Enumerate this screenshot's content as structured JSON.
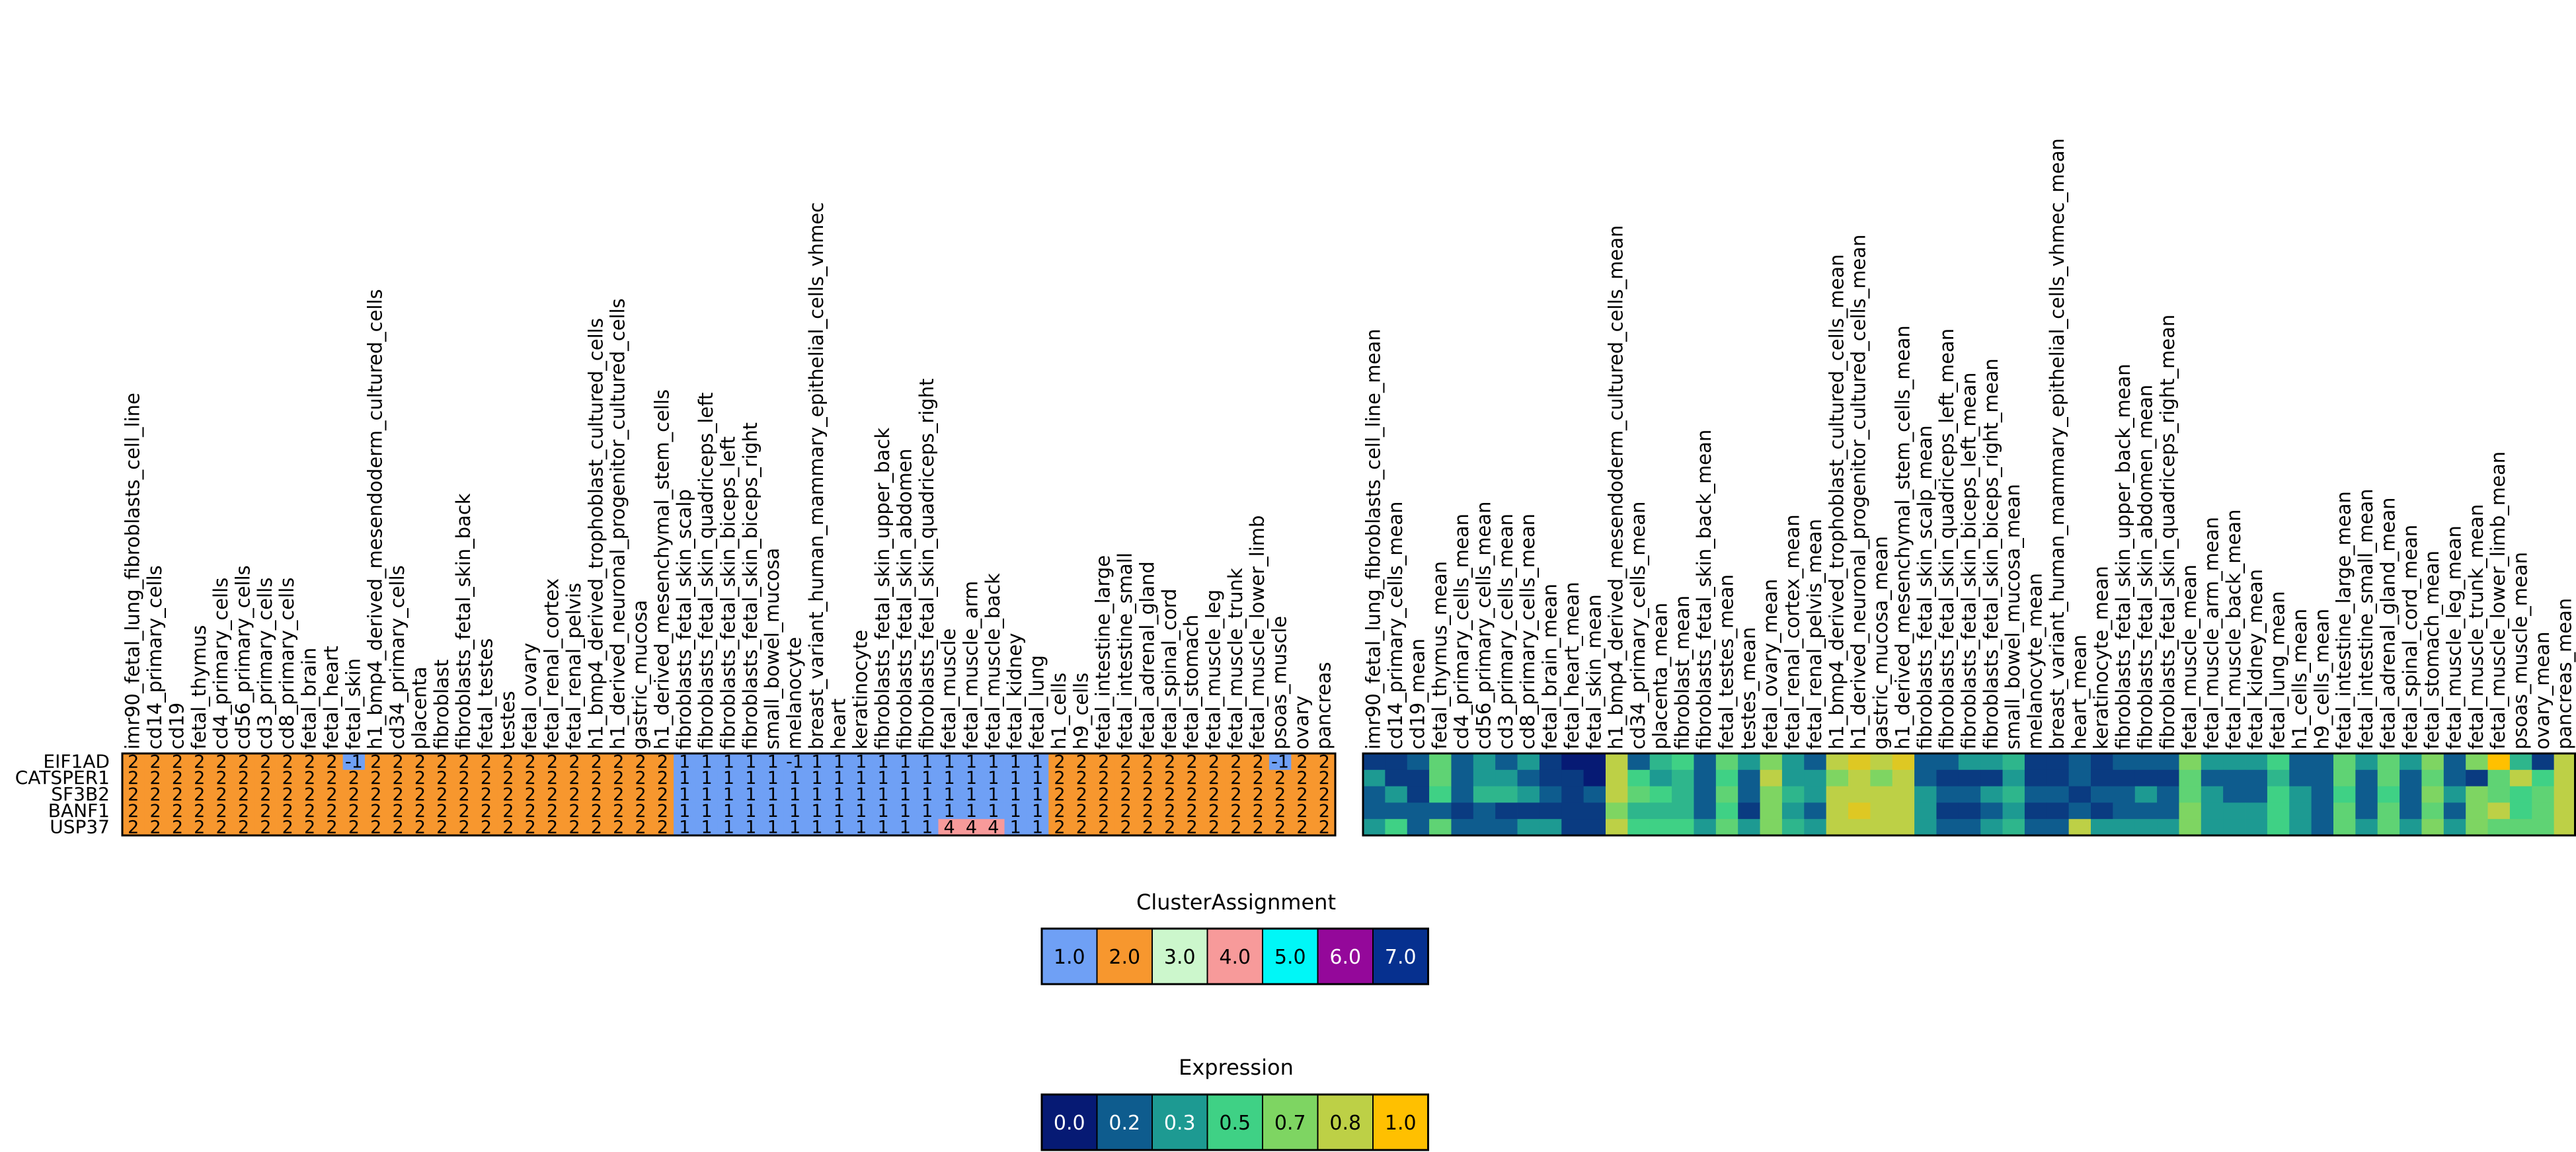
{
  "chart_data": [
    {
      "type": "heatmap",
      "name": "cluster-assignment-heatmap",
      "rows": [
        "EIF1AD",
        "CATSPER1",
        "SF3B2",
        "BANF1",
        "USP37"
      ],
      "columns": [
        "imr90_fetal_lung_fibroblasts_cell_line",
        "cd14_primary_cells",
        "cd19",
        "fetal_thymus",
        "cd4_primary_cells",
        "cd56_primary_cells",
        "cd3_primary_cells",
        "cd8_primary_cells",
        "fetal_brain",
        "fetal_heart",
        "fetal_skin",
        "h1_bmp4_derived_mesendoderm_cultured_cells",
        "cd34_primary_cells",
        "placenta",
        "fibroblast",
        "fibroblasts_fetal_skin_back",
        "fetal_testes",
        "testes",
        "fetal_ovary",
        "fetal_renal_cortex",
        "fetal_renal_pelvis",
        "h1_bmp4_derived_trophoblast_cultured_cells",
        "h1_derived_neuronal_progenitor_cultured_cells",
        "gastric_mucosa",
        "h1_derived_mesenchymal_stem_cells",
        "fibroblasts_fetal_skin_scalp",
        "fibroblasts_fetal_skin_quadriceps_left",
        "fibroblasts_fetal_skin_biceps_left",
        "fibroblasts_fetal_skin_biceps_right",
        "small_bowel_mucosa",
        "melanocyte",
        "breast_variant_human_mammary_epithelial_cells_vhmec",
        "heart",
        "keratinocyte",
        "fibroblasts_fetal_skin_upper_back",
        "fibroblasts_fetal_skin_abdomen",
        "fibroblasts_fetal_skin_quadriceps_right",
        "fetal_muscle",
        "fetal_muscle_arm",
        "fetal_muscle_back",
        "fetal_kidney",
        "fetal_lung",
        "h1_cells",
        "h9_cells",
        "fetal_intestine_large",
        "fetal_intestine_small",
        "fetal_adrenal_gland",
        "fetal_spinal_cord",
        "fetal_stomach",
        "fetal_muscle_leg",
        "fetal_muscle_trunk",
        "fetal_muscle_lower_limb",
        "psoas_muscle",
        "ovary",
        "pancreas"
      ],
      "values": [
        [
          2,
          2,
          2,
          2,
          2,
          2,
          2,
          2,
          2,
          2,
          -1,
          2,
          2,
          2,
          2,
          2,
          2,
          2,
          2,
          2,
          2,
          2,
          2,
          2,
          2,
          1,
          1,
          1,
          1,
          1,
          -1,
          1,
          1,
          1,
          1,
          1,
          1,
          1,
          1,
          1,
          1,
          1,
          2,
          2,
          2,
          2,
          2,
          2,
          2,
          2,
          2,
          2,
          -1,
          2,
          2
        ],
        [
          2,
          2,
          2,
          2,
          2,
          2,
          2,
          2,
          2,
          2,
          2,
          2,
          2,
          2,
          2,
          2,
          2,
          2,
          2,
          2,
          2,
          2,
          2,
          2,
          2,
          1,
          1,
          1,
          1,
          1,
          1,
          1,
          1,
          1,
          1,
          1,
          1,
          1,
          1,
          1,
          1,
          1,
          2,
          2,
          2,
          2,
          2,
          2,
          2,
          2,
          2,
          2,
          2,
          2,
          2
        ],
        [
          2,
          2,
          2,
          2,
          2,
          2,
          2,
          2,
          2,
          2,
          2,
          2,
          2,
          2,
          2,
          2,
          2,
          2,
          2,
          2,
          2,
          2,
          2,
          2,
          2,
          1,
          1,
          1,
          1,
          1,
          1,
          1,
          1,
          1,
          1,
          1,
          1,
          1,
          1,
          1,
          1,
          1,
          2,
          2,
          2,
          2,
          2,
          2,
          2,
          2,
          2,
          2,
          2,
          2,
          2
        ],
        [
          2,
          2,
          2,
          2,
          2,
          2,
          2,
          2,
          2,
          2,
          2,
          2,
          2,
          2,
          2,
          2,
          2,
          2,
          2,
          2,
          2,
          2,
          2,
          2,
          2,
          1,
          1,
          1,
          1,
          1,
          1,
          1,
          1,
          1,
          1,
          1,
          1,
          1,
          1,
          1,
          1,
          1,
          2,
          2,
          2,
          2,
          2,
          2,
          2,
          2,
          2,
          2,
          2,
          2,
          2
        ],
        [
          2,
          2,
          2,
          2,
          2,
          2,
          2,
          2,
          2,
          2,
          2,
          2,
          2,
          2,
          2,
          2,
          2,
          2,
          2,
          2,
          2,
          2,
          2,
          2,
          2,
          1,
          1,
          1,
          1,
          1,
          1,
          1,
          1,
          1,
          1,
          1,
          1,
          4,
          4,
          4,
          1,
          1,
          2,
          2,
          2,
          2,
          2,
          2,
          2,
          2,
          2,
          2,
          2,
          2,
          2
        ]
      ],
      "cell_colors": {
        "-1": "#6fa0f5",
        "1": "#6fa0f5",
        "2": "#f7972e",
        "3": "#ccf7cc",
        "4": "#f79a9a",
        "5": "#00f7f7",
        "6": "#94089a",
        "7": "#06308f"
      }
    },
    {
      "type": "heatmap",
      "name": "expression-heatmap",
      "rows": [
        "EIF1AD",
        "CATSPER1",
        "SF3B2",
        "BANF1",
        "USP37"
      ],
      "columns": [
        "imr90_fetal_lung_fibroblasts_cell_line_mean",
        "cd14_primary_cells_mean",
        "cd19_mean",
        "fetal_thymus_mean",
        "cd4_primary_cells_mean",
        "cd56_primary_cells_mean",
        "cd3_primary_cells_mean",
        "cd8_primary_cells_mean",
        "fetal_brain_mean",
        "fetal_heart_mean",
        "fetal_skin_mean",
        "h1_bmp4_derived_mesendoderm_cultured_cells_mean",
        "cd34_primary_cells_mean",
        "placenta_mean",
        "fibroblast_mean",
        "fibroblasts_fetal_skin_back_mean",
        "fetal_testes_mean",
        "testes_mean",
        "fetal_ovary_mean",
        "fetal_renal_cortex_mean",
        "fetal_renal_pelvis_mean",
        "h1_bmp4_derived_trophoblast_cultured_cells_mean",
        "h1_derived_neuronal_progenitor_cultured_cells_mean",
        "gastric_mucosa_mean",
        "h1_derived_mesenchymal_stem_cells_mean",
        "fibroblasts_fetal_skin_scalp_mean",
        "fibroblasts_fetal_skin_quadriceps_left_mean",
        "fibroblasts_fetal_skin_biceps_left_mean",
        "fibroblasts_fetal_skin_biceps_right_mean",
        "small_bowel_mucosa_mean",
        "melanocyte_mean",
        "breast_variant_human_mammary_epithelial_cells_vhmec_mean",
        "heart_mean",
        "keratinocyte_mean",
        "fibroblasts_fetal_skin_upper_back_mean",
        "fibroblasts_fetal_skin_abdomen_mean",
        "fibroblasts_fetal_skin_quadriceps_right_mean",
        "fetal_muscle_mean",
        "fetal_muscle_arm_mean",
        "fetal_muscle_back_mean",
        "fetal_kidney_mean",
        "fetal_lung_mean",
        "h1_cells_mean",
        "h9_cells_mean",
        "fetal_intestine_large_mean",
        "fetal_intestine_small_mean",
        "fetal_adrenal_gland_mean",
        "fetal_spinal_cord_mean",
        "fetal_stomach_mean",
        "fetal_muscle_leg_mean",
        "fetal_muscle_trunk_mean",
        "fetal_muscle_lower_limb_mean",
        "psoas_muscle_mean",
        "ovary_mean",
        "pancreas_mean"
      ],
      "values": [
        [
          0.1,
          0.1,
          0.2,
          0.6,
          0.2,
          0.3,
          0.2,
          0.3,
          0.1,
          0.0,
          0.0,
          0.8,
          0.2,
          0.4,
          0.5,
          0.2,
          0.6,
          0.3,
          0.7,
          0.3,
          0.2,
          0.8,
          0.9,
          0.8,
          0.9,
          0.2,
          0.2,
          0.3,
          0.3,
          0.4,
          0.1,
          0.1,
          0.2,
          0.1,
          0.2,
          0.2,
          0.2,
          0.7,
          0.3,
          0.3,
          0.3,
          0.5,
          0.2,
          0.2,
          0.6,
          0.3,
          0.6,
          0.3,
          0.7,
          0.2,
          0.7,
          1.0,
          0.4,
          0.1,
          0.8
        ],
        [
          0.3,
          0.1,
          0.1,
          0.6,
          0.2,
          0.3,
          0.3,
          0.2,
          0.1,
          0.1,
          0.0,
          0.8,
          0.5,
          0.3,
          0.4,
          0.2,
          0.5,
          0.2,
          0.8,
          0.3,
          0.3,
          0.7,
          0.8,
          0.7,
          0.8,
          0.2,
          0.1,
          0.1,
          0.1,
          0.3,
          0.1,
          0.1,
          0.2,
          0.1,
          0.1,
          0.1,
          0.1,
          0.6,
          0.2,
          0.2,
          0.2,
          0.4,
          0.2,
          0.2,
          0.6,
          0.2,
          0.6,
          0.2,
          0.6,
          0.2,
          0.1,
          0.6,
          0.8,
          0.5,
          0.8
        ],
        [
          0.2,
          0.3,
          0.1,
          0.5,
          0.2,
          0.4,
          0.4,
          0.3,
          0.2,
          0.1,
          0.2,
          0.8,
          0.6,
          0.5,
          0.4,
          0.2,
          0.6,
          0.2,
          0.7,
          0.4,
          0.3,
          0.8,
          0.8,
          0.8,
          0.8,
          0.3,
          0.2,
          0.2,
          0.3,
          0.4,
          0.2,
          0.2,
          0.1,
          0.2,
          0.2,
          0.3,
          0.2,
          0.6,
          0.3,
          0.2,
          0.2,
          0.5,
          0.3,
          0.2,
          0.5,
          0.2,
          0.5,
          0.2,
          0.7,
          0.3,
          0.7,
          0.6,
          0.5,
          0.6,
          0.8
        ],
        [
          0.2,
          0.2,
          0.2,
          0.2,
          0.1,
          0.2,
          0.1,
          0.1,
          0.1,
          0.1,
          0.1,
          0.7,
          0.4,
          0.4,
          0.4,
          0.2,
          0.5,
          0.1,
          0.7,
          0.3,
          0.2,
          0.8,
          0.9,
          0.8,
          0.8,
          0.3,
          0.1,
          0.1,
          0.2,
          0.3,
          0.1,
          0.1,
          0.2,
          0.1,
          0.2,
          0.2,
          0.2,
          0.7,
          0.3,
          0.3,
          0.3,
          0.5,
          0.3,
          0.2,
          0.6,
          0.2,
          0.6,
          0.2,
          0.6,
          0.2,
          0.7,
          0.8,
          0.5,
          0.6,
          0.8
        ],
        [
          0.3,
          0.5,
          0.2,
          0.6,
          0.2,
          0.2,
          0.2,
          0.3,
          0.3,
          0.1,
          0.1,
          0.8,
          0.5,
          0.5,
          0.5,
          0.3,
          0.6,
          0.3,
          0.7,
          0.4,
          0.3,
          0.8,
          0.8,
          0.8,
          0.8,
          0.3,
          0.2,
          0.2,
          0.3,
          0.4,
          0.2,
          0.2,
          0.8,
          0.3,
          0.3,
          0.3,
          0.3,
          0.7,
          0.3,
          0.3,
          0.3,
          0.5,
          0.3,
          0.2,
          0.6,
          0.3,
          0.6,
          0.3,
          0.7,
          0.3,
          0.7,
          0.6,
          0.6,
          0.6,
          0.8
        ]
      ]
    }
  ],
  "legend_cluster": {
    "title": "ClusterAssignment",
    "items": [
      {
        "label": "1.0",
        "color": "#6fa0f5"
      },
      {
        "label": "2.0",
        "color": "#f7972e"
      },
      {
        "label": "3.0",
        "color": "#ccf7cc"
      },
      {
        "label": "4.0",
        "color": "#f79a9a"
      },
      {
        "label": "5.0",
        "color": "#00f7f7"
      },
      {
        "label": "6.0",
        "color": "#94089a"
      },
      {
        "label": "7.0",
        "color": "#06308f"
      }
    ]
  },
  "legend_expression": {
    "title": "Expression",
    "items": [
      {
        "label": "0.0",
        "color": "#061a74"
      },
      {
        "label": "0.2",
        "color": "#0e5c8e"
      },
      {
        "label": "0.3",
        "color": "#1d9a92"
      },
      {
        "label": "0.5",
        "color": "#3fd185"
      },
      {
        "label": "0.7",
        "color": "#7ed562"
      },
      {
        "label": "0.8",
        "color": "#bdd046"
      },
      {
        "label": "1.0",
        "color": "#ffc000"
      }
    ]
  }
}
